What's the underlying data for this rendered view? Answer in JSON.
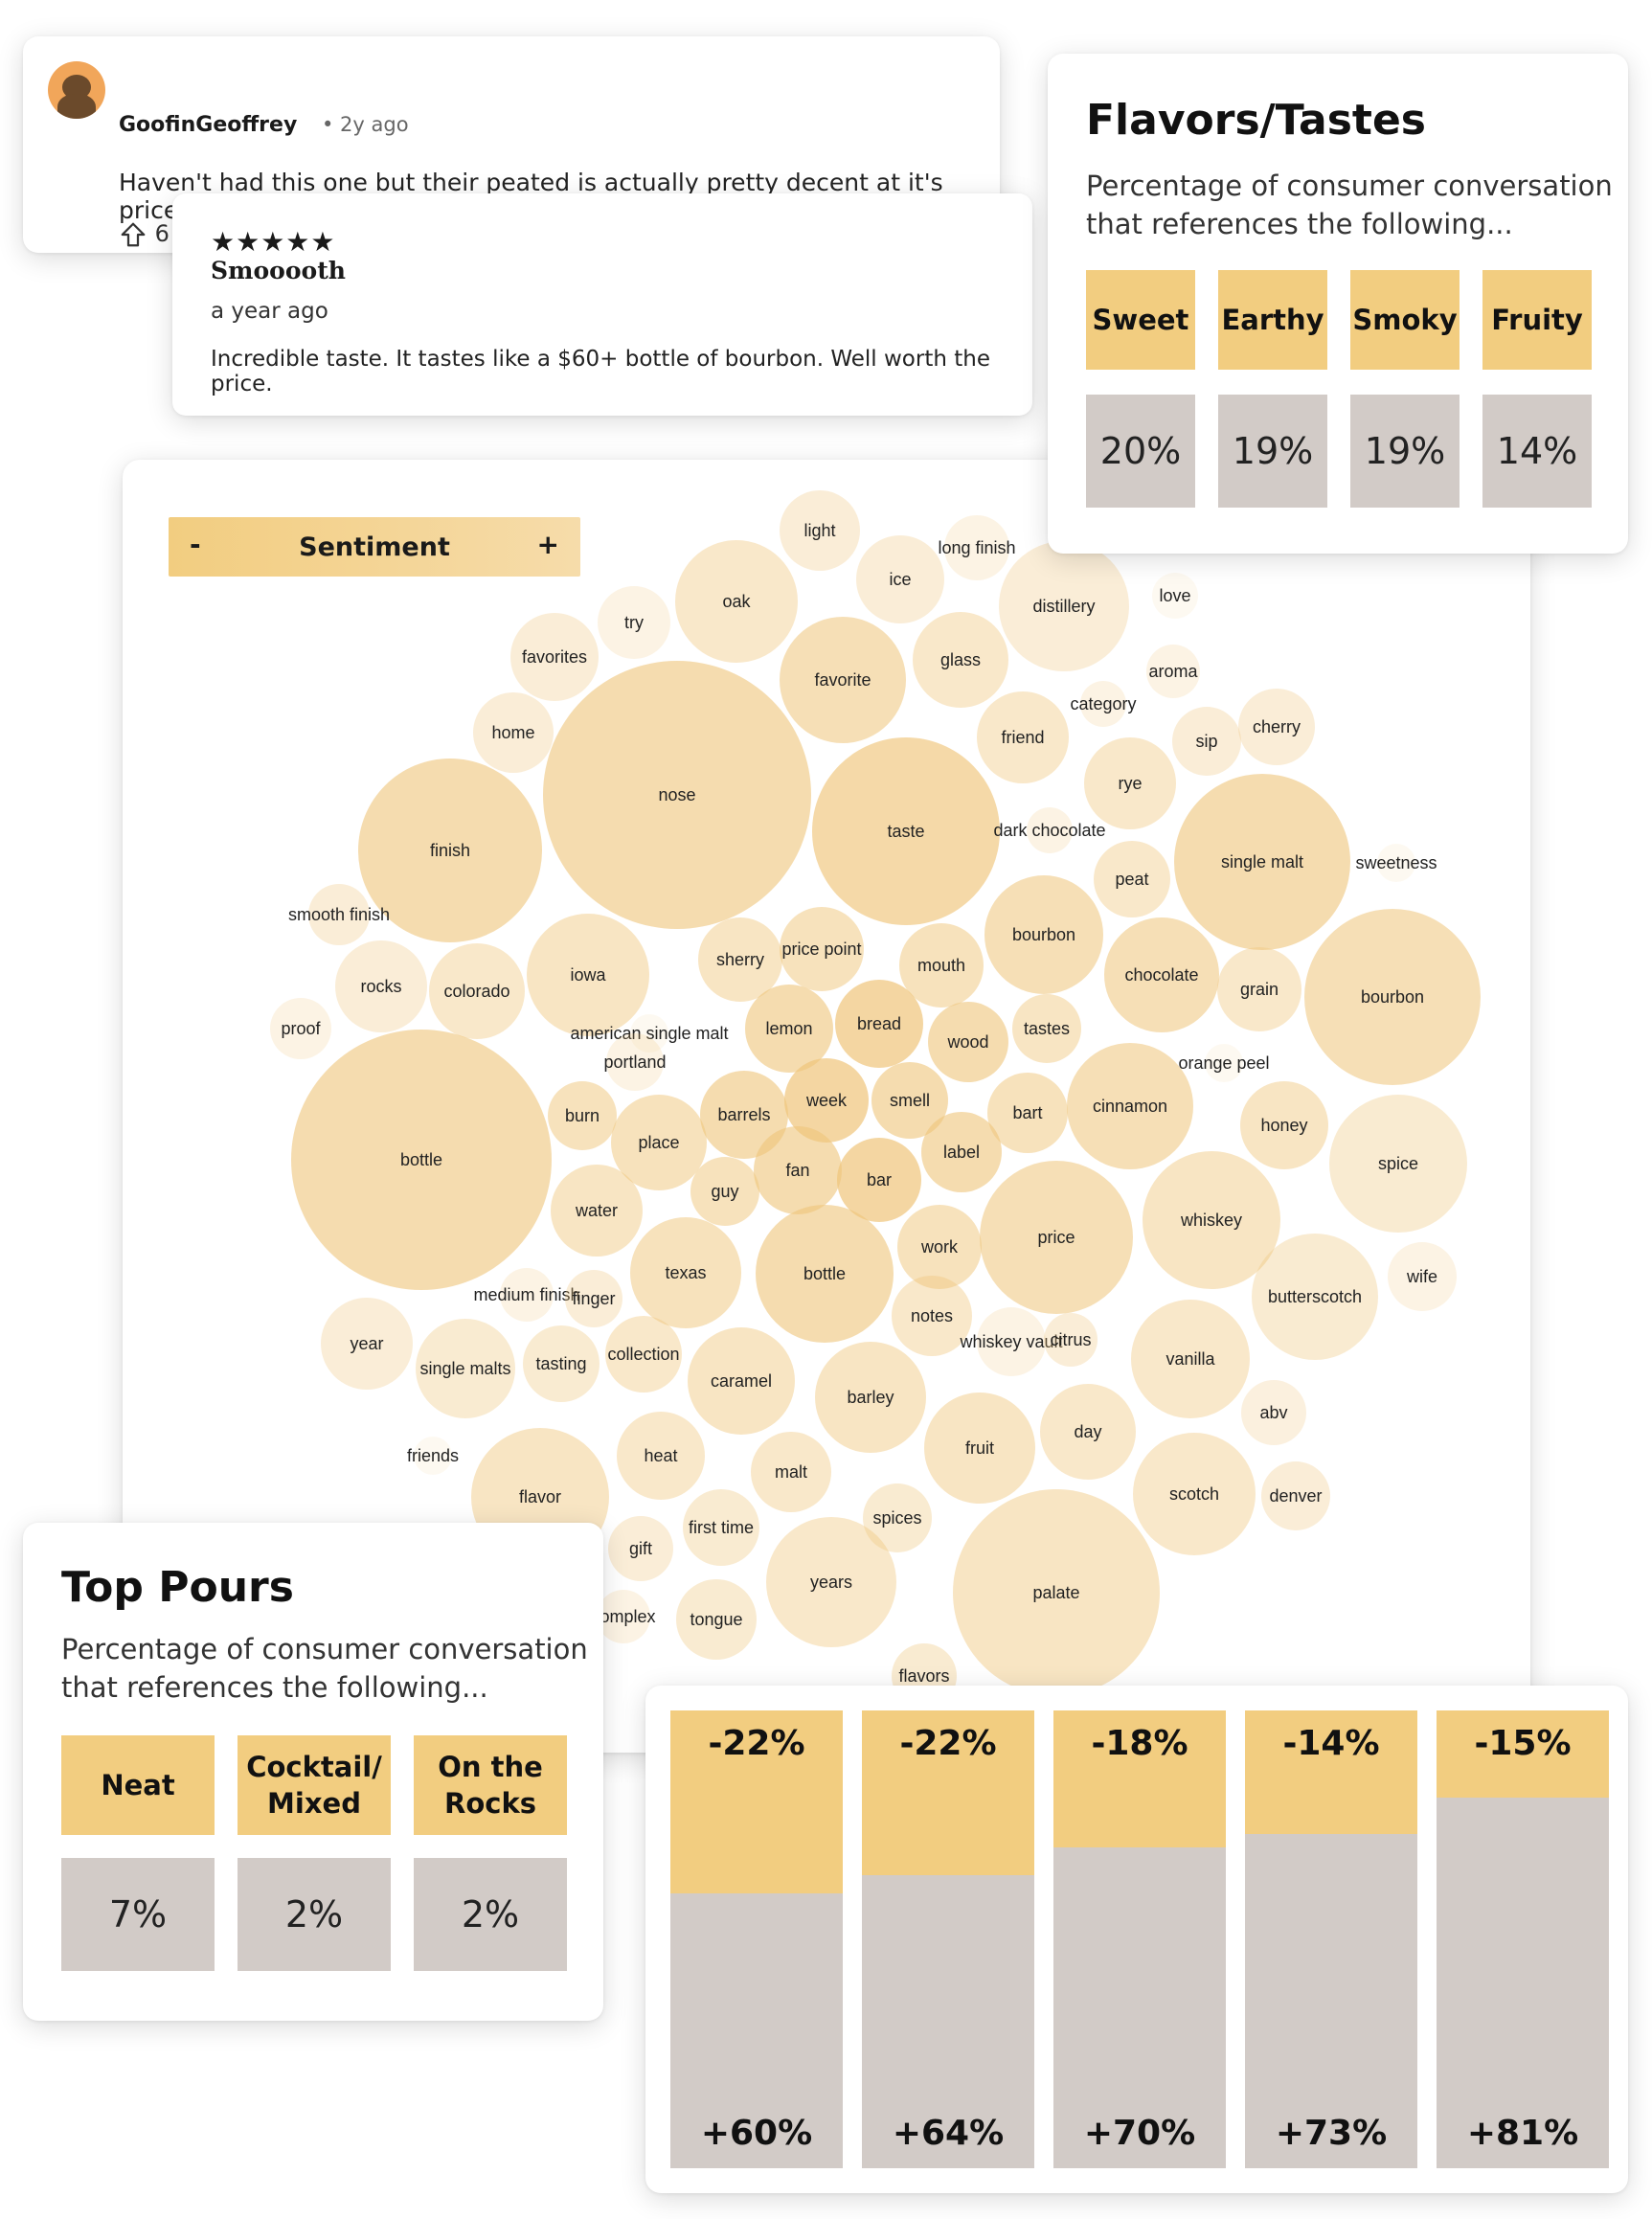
{
  "comment": {
    "username": "GoofinGeoffrey",
    "time": "• 2y ago",
    "text": "Haven't had this one but their peated is actually pretty decent at it's price",
    "upvotes": "6"
  },
  "review": {
    "stars": "★★★★★",
    "title": "Smooooth",
    "time": "a year ago",
    "body": "Incredible taste. It tastes like a $60+ bottle of bourbon. Well worth the price."
  },
  "sentiment": {
    "minus": "-",
    "label": "Sentiment",
    "plus": "+"
  },
  "bubbles": [
    {
      "label": "light",
      "s": 0.3
    },
    {
      "label": "long finish",
      "s": 0.2
    },
    {
      "label": "ice",
      "s": 0.3
    },
    {
      "label": "oak",
      "s": 0.4
    },
    {
      "label": "distillery",
      "s": 0.3
    },
    {
      "label": "love",
      "s": 0.1
    },
    {
      "label": "try",
      "s": 0.2
    },
    {
      "label": "favorites",
      "s": 0.3
    },
    {
      "label": "glass",
      "s": 0.4
    },
    {
      "label": "favorite",
      "s": 0.55
    },
    {
      "label": "aroma",
      "s": 0.2
    },
    {
      "label": "category",
      "s": 0.2
    },
    {
      "label": "home",
      "s": 0.3
    },
    {
      "label": "friend",
      "s": 0.4
    },
    {
      "label": "sip",
      "s": 0.3
    },
    {
      "label": "cherry",
      "s": 0.3
    },
    {
      "label": "nose",
      "s": 0.6
    },
    {
      "label": "finish",
      "s": 0.6
    },
    {
      "label": "taste",
      "s": 0.65
    },
    {
      "label": "rye",
      "s": 0.4
    },
    {
      "label": "dark chocolate",
      "s": 0.2
    },
    {
      "label": "single malt",
      "s": 0.6
    },
    {
      "label": "sweetness",
      "s": 0.1
    },
    {
      "label": "peat",
      "s": 0.4
    },
    {
      "label": "smooth finish",
      "s": 0.3
    },
    {
      "label": "iowa",
      "s": 0.45
    },
    {
      "label": "sherry",
      "s": 0.45
    },
    {
      "label": "price point",
      "s": 0.5
    },
    {
      "label": "mouth",
      "s": 0.5
    },
    {
      "label": "bourbon",
      "s": 0.55
    },
    {
      "label": "chocolate",
      "s": 0.55
    },
    {
      "label": "rocks",
      "s": 0.3
    },
    {
      "label": "colorado",
      "s": 0.4
    },
    {
      "label": "grain",
      "s": 0.4
    },
    {
      "label": "bourbon",
      "s": 0.55
    },
    {
      "label": "proof",
      "s": 0.2
    },
    {
      "label": "american single malt",
      "s": 0.1
    },
    {
      "label": "lemon",
      "s": 0.6
    },
    {
      "label": "bread",
      "s": 0.7
    },
    {
      "label": "wood",
      "s": 0.6
    },
    {
      "label": "tastes",
      "s": 0.45
    },
    {
      "label": "portland",
      "s": 0.2
    },
    {
      "label": "orange peel",
      "s": 0.1
    },
    {
      "label": "burn",
      "s": 0.5
    },
    {
      "label": "barrels",
      "s": 0.6
    },
    {
      "label": "week",
      "s": 0.7
    },
    {
      "label": "smell",
      "s": 0.6
    },
    {
      "label": "bart",
      "s": 0.5
    },
    {
      "label": "cinnamon",
      "s": 0.55
    },
    {
      "label": "honey",
      "s": 0.45
    },
    {
      "label": "bottle",
      "s": 0.6
    },
    {
      "label": "place",
      "s": 0.5
    },
    {
      "label": "spice",
      "s": 0.35
    },
    {
      "label": "fan",
      "s": 0.6
    },
    {
      "label": "bar",
      "s": 0.7
    },
    {
      "label": "label",
      "s": 0.6
    },
    {
      "label": "guy",
      "s": 0.5
    },
    {
      "label": "water",
      "s": 0.45
    },
    {
      "label": "whiskey",
      "s": 0.45
    },
    {
      "label": "work",
      "s": 0.5
    },
    {
      "label": "price",
      "s": 0.55
    },
    {
      "label": "texas",
      "s": 0.5
    },
    {
      "label": "bottle",
      "s": 0.6
    },
    {
      "label": "wife",
      "s": 0.2
    },
    {
      "label": "medium finish",
      "s": 0.2
    },
    {
      "label": "finger",
      "s": 0.3
    },
    {
      "label": "butterscotch",
      "s": 0.35
    },
    {
      "label": "notes",
      "s": 0.4
    },
    {
      "label": "year",
      "s": 0.3
    },
    {
      "label": "whiskey vault",
      "s": 0.2
    },
    {
      "label": "citrus",
      "s": 0.3
    },
    {
      "label": "vanilla",
      "s": 0.4
    },
    {
      "label": "single malts",
      "s": 0.35
    },
    {
      "label": "tasting",
      "s": 0.35
    },
    {
      "label": "collection",
      "s": 0.4
    },
    {
      "label": "caramel",
      "s": 0.45
    },
    {
      "label": "barley",
      "s": 0.45
    },
    {
      "label": "abv",
      "s": 0.25
    },
    {
      "label": "day",
      "s": 0.4
    },
    {
      "label": "fruit",
      "s": 0.45
    },
    {
      "label": "friends",
      "s": 0.1
    },
    {
      "label": "heat",
      "s": 0.4
    },
    {
      "label": "malt",
      "s": 0.4
    },
    {
      "label": "scotch",
      "s": 0.4
    },
    {
      "label": "denver",
      "s": 0.3
    },
    {
      "label": "flavor",
      "s": 0.45
    },
    {
      "label": "spices",
      "s": 0.35
    },
    {
      "label": "first time",
      "s": 0.35
    },
    {
      "label": "gift",
      "s": 0.3
    },
    {
      "label": "years",
      "s": 0.4
    },
    {
      "label": "palate",
      "s": 0.45
    },
    {
      "label": "complex",
      "s": 0.2
    },
    {
      "label": "tongue",
      "s": 0.35
    },
    {
      "label": "flavors",
      "s": 0.35
    }
  ],
  "flavors": {
    "title": "Flavors/Tastes",
    "subtitle_line1": "Percentage of consumer conversation",
    "subtitle_line2": "that references the following...",
    "items": [
      {
        "label": "Sweet",
        "value": "20%"
      },
      {
        "label": "Earthy",
        "value": "19%"
      },
      {
        "label": "Smoky",
        "value": "19%"
      },
      {
        "label": "Fruity",
        "value": "14%"
      }
    ]
  },
  "pours": {
    "title": "Top Pours",
    "subtitle_line1": "Percentage of consumer conversation",
    "subtitle_line2": "that references the following...",
    "items": [
      {
        "label_line1": "Neat",
        "label_line2": "",
        "value": "7%"
      },
      {
        "label_line1": "Cocktail/",
        "label_line2": "Mixed",
        "value": "2%"
      },
      {
        "label_line1": "On the",
        "label_line2": "Rocks",
        "value": "2%"
      }
    ]
  },
  "sentiment_bars": [
    {
      "negative": "-22%",
      "positive": "+60%",
      "neg_pct": 22,
      "pos_pct": 60
    },
    {
      "negative": "-22%",
      "positive": "+64%",
      "neg_pct": 22,
      "pos_pct": 64
    },
    {
      "negative": "-18%",
      "positive": "+70%",
      "neg_pct": 18,
      "pos_pct": 70
    },
    {
      "negative": "-14%",
      "positive": "+73%",
      "neg_pct": 14,
      "pos_pct": 73
    },
    {
      "negative": "-15%",
      "positive": "+81%",
      "neg_pct": 15,
      "pos_pct": 81
    }
  ],
  "colors": {
    "accent": "#f2cd80",
    "accent_light": "#f9e2b2",
    "neutral": "#d2cbc7",
    "bubble": "#efc57a"
  }
}
